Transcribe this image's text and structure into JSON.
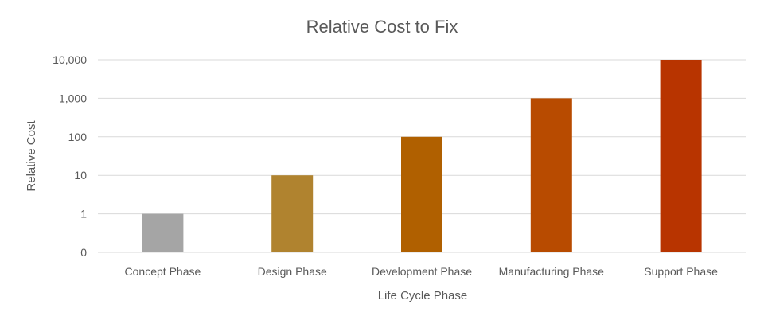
{
  "chart_data": {
    "type": "bar",
    "title": "Relative Cost to Fix",
    "xlabel": "Life Cycle Phase",
    "ylabel": "Relative Cost",
    "y_scale": "log",
    "categories": [
      "Concept Phase",
      "Design Phase",
      "Development Phase",
      "Manufacturing Phase",
      "Support Phase"
    ],
    "values": [
      1,
      10,
      100,
      1000,
      10000
    ],
    "y_ticks": [
      {
        "value": 0,
        "label": "0"
      },
      {
        "value": 1,
        "label": "1"
      },
      {
        "value": 10,
        "label": "10"
      },
      {
        "value": 100,
        "label": "100"
      },
      {
        "value": 1000,
        "label": "1,000"
      },
      {
        "value": 10000,
        "label": "10,000"
      }
    ],
    "bar_colors": [
      "#a5a5a5",
      "#b0832f",
      "#b06000",
      "#b84b00",
      "#b83400"
    ],
    "grid": true,
    "legend": "none"
  }
}
